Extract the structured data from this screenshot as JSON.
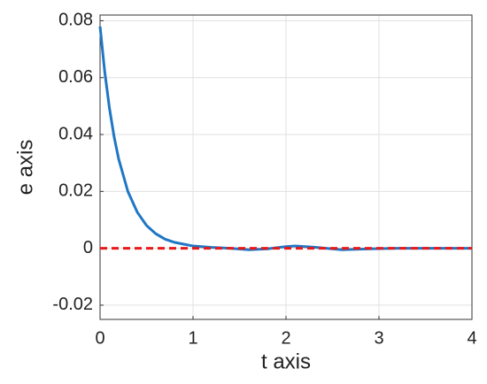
{
  "chart_data": {
    "type": "line",
    "xlabel": "t axis",
    "ylabel": "e axis",
    "xlim": [
      0,
      4
    ],
    "ylim": [
      -0.025,
      0.082
    ],
    "xticks": [
      0,
      1,
      2,
      3,
      4
    ],
    "yticks": [
      -0.02,
      0,
      0.02,
      0.04,
      0.06,
      0.08
    ],
    "grid": true,
    "series": [
      {
        "color": "#1f77c4",
        "style": "solid",
        "x": [
          0,
          0.05,
          0.1,
          0.15,
          0.2,
          0.3,
          0.4,
          0.5,
          0.6,
          0.7,
          0.8,
          1.0,
          1.2,
          1.4,
          1.6,
          1.8,
          2.0,
          2.1,
          2.3,
          2.6,
          2.9,
          3.2,
          3.6,
          4.0
        ],
        "values": [
          0.078,
          0.0621,
          0.0495,
          0.0394,
          0.0314,
          0.0199,
          0.0127,
          0.008,
          0.0051,
          0.0032,
          0.0021,
          0.0008,
          0.0003,
          0.0,
          -0.0005,
          -0.0002,
          0.0006,
          0.0008,
          0.0004,
          -0.0005,
          -0.0002,
          0.0,
          0.0,
          0.0
        ]
      },
      {
        "color": "#e8191b",
        "style": "dashed",
        "x": [
          0,
          4
        ],
        "values": [
          0,
          0
        ]
      }
    ]
  }
}
